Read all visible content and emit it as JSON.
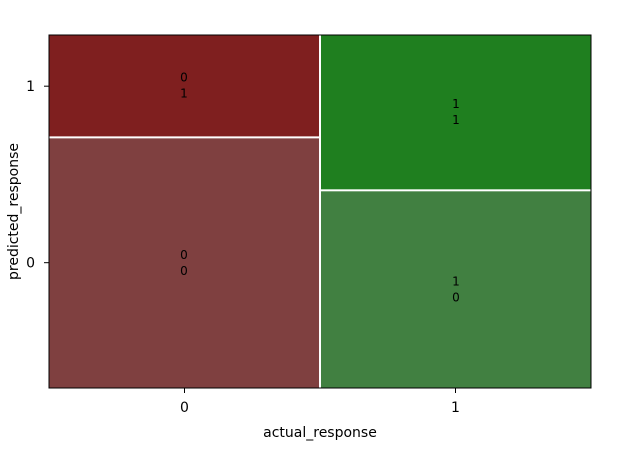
{
  "chart_data": {
    "type": "mosaic",
    "xlabel": "actual_response",
    "ylabel": "predicted_response",
    "x_categories": [
      "0",
      "1"
    ],
    "y_categories": [
      "0",
      "1"
    ],
    "x_proportions": [
      0.5,
      0.5
    ],
    "y_proportions_within_x": {
      "0": {
        "0": 0.71,
        "1": 0.29
      },
      "1": {
        "0": 0.56,
        "1": 0.44
      }
    },
    "cells": [
      {
        "x": "0",
        "y": "0",
        "label_line1": "0",
        "label_line2": "0",
        "color": "#7f4040"
      },
      {
        "x": "0",
        "y": "1",
        "label_line1": "0",
        "label_line2": "1",
        "color": "#7f1f1f"
      },
      {
        "x": "1",
        "y": "0",
        "label_line1": "1",
        "label_line2": "0",
        "color": "#418041"
      },
      {
        "x": "1",
        "y": "1",
        "label_line1": "1",
        "label_line2": "1",
        "color": "#1f7f1f"
      }
    ],
    "grid": false,
    "legend": "none"
  }
}
